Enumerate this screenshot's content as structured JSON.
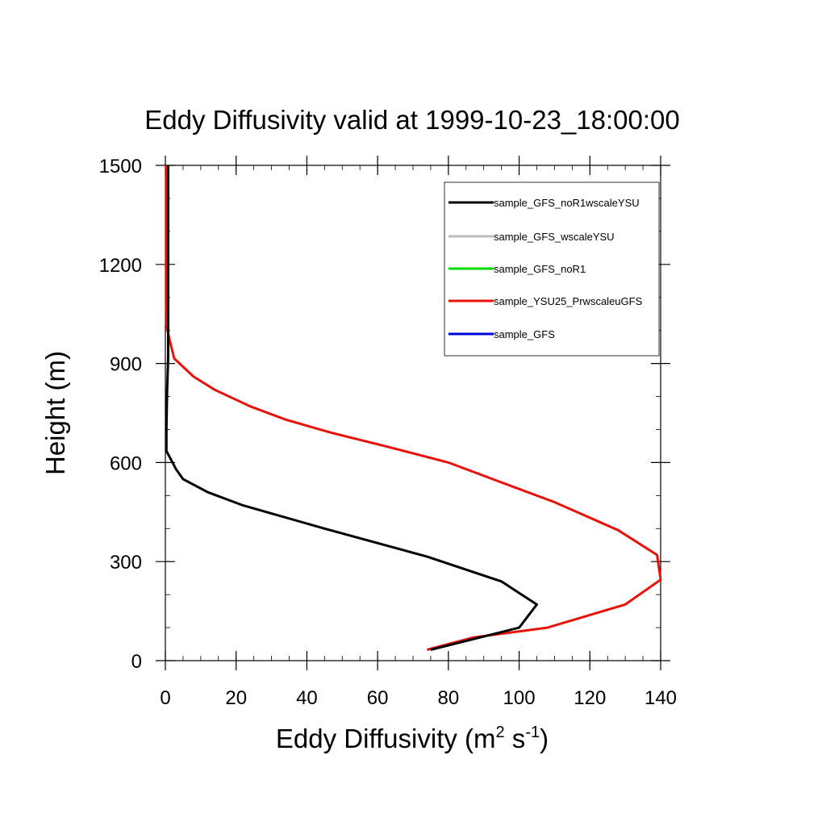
{
  "chart_data": {
    "type": "line",
    "title": "Eddy Diffusivity valid at 1999-10-23_18:00:00",
    "xlabel_main": "Eddy Diffusivity (m",
    "xlabel_sup1": "2",
    "xlabel_mid": " s",
    "xlabel_sup2": "-1",
    "xlabel_end": ")",
    "ylabel": "Height (m)",
    "xlim": [
      0,
      140
    ],
    "ylim": [
      0,
      1500
    ],
    "xticks": [
      0,
      20,
      40,
      60,
      80,
      100,
      120,
      140
    ],
    "yticks": [
      0,
      300,
      600,
      900,
      1200,
      1500
    ],
    "legend_position": "top-right",
    "series": [
      {
        "name": "sample_GFS_noR1wscaleYSU",
        "color": "#000000",
        "x": [
          75,
          100,
          105,
          95,
          74,
          45,
          22,
          12,
          5,
          3,
          0.3,
          0.3,
          0.5,
          0.8,
          0.8,
          0.8,
          0.8,
          0.8
        ],
        "y": [
          33,
          100,
          170,
          240,
          315,
          400,
          470,
          510,
          550,
          580,
          635,
          700,
          820,
          920,
          1000,
          1100,
          1300,
          1500
        ]
      },
      {
        "name": "sample_GFS_wscaleYSU",
        "color": "#bbbbbb",
        "x": [],
        "y": []
      },
      {
        "name": "sample_GFS_noR1",
        "color": "#00dd00",
        "x": [],
        "y": []
      },
      {
        "name": "sample_YSU25_PrwscaleuGFS",
        "color": "#e8120a",
        "x": [
          74,
          87,
          108,
          130,
          140,
          139,
          128,
          110,
          95,
          80,
          62,
          47,
          34,
          24,
          14,
          8,
          2.5,
          1,
          0.3,
          0.2,
          0.2,
          0.2
        ],
        "y": [
          33,
          70,
          100,
          170,
          245,
          320,
          395,
          480,
          540,
          600,
          650,
          690,
          730,
          770,
          820,
          860,
          915,
          980,
          1020,
          1100,
          1300,
          1500
        ]
      },
      {
        "name": "sample_GFS",
        "color": "#0000dd",
        "x": [],
        "y": []
      }
    ]
  }
}
